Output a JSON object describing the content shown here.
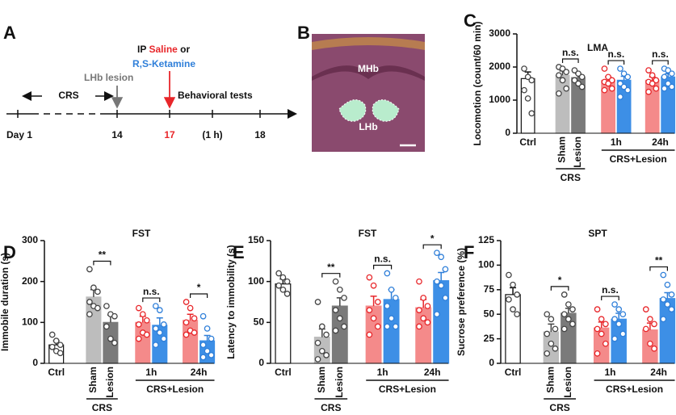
{
  "timeline": {
    "panel": "A",
    "ip": "IP",
    "saline": "Saline",
    "or": "or",
    "ketamine": "R,S-Ketamine",
    "lesion": "LHb lesion",
    "crs": "CRS",
    "tests": "Behavioral tests",
    "days": [
      "Day 1",
      "14",
      "17",
      "(1 h)",
      "18"
    ]
  },
  "image": {
    "panel": "B",
    "labels": [
      "MHb",
      "LHb"
    ]
  },
  "chart_data": [
    {
      "type": "bar",
      "panel": "C",
      "title": "LMA",
      "ylabel": "Locomotion (count/60 min)",
      "categories": [
        "Ctrl",
        "Sham",
        "Lesion",
        null,
        null,
        null,
        null
      ],
      "group_labels": [
        "1h",
        "24h"
      ],
      "condition_labels": [
        "CRS",
        "CRS+Lesion"
      ],
      "values": [
        1650,
        1750,
        1680,
        1600,
        1600,
        1600,
        1700
      ],
      "errors": [
        200,
        130,
        120,
        100,
        120,
        100,
        100
      ],
      "points": [
        [
          1950,
          1700,
          1600,
          1300,
          1050,
          600
        ],
        [
          2000,
          1950,
          1850,
          1750,
          1600,
          1350,
          1200
        ],
        [
          1900,
          1800,
          1700,
          1600,
          1500,
          1400
        ],
        [
          1950,
          1700,
          1600,
          1550,
          1500,
          1350,
          1300
        ],
        [
          1950,
          1800,
          1700,
          1500,
          1400,
          1300,
          1100
        ],
        [
          1900,
          1750,
          1600,
          1550,
          1500,
          1350,
          1250
        ],
        [
          1950,
          1900,
          1800,
          1700,
          1500,
          1400,
          1350
        ]
      ],
      "significance": [
        "n.s.",
        "n.s.",
        "n.s."
      ],
      "colors": [
        "#ffffff",
        "#bdbdbd",
        "#7a7a7a",
        "#f48a8a",
        "#3d8fe6",
        "#f48a8a",
        "#3d8fe6"
      ],
      "point_colors": [
        "#444444",
        "#444444",
        "#444444",
        "#e8262a",
        "#2f7fd9",
        "#e8262a",
        "#2f7fd9"
      ],
      "ylim": [
        0,
        3000
      ],
      "yticks": [
        0,
        1000,
        2000,
        3000
      ]
    },
    {
      "type": "bar",
      "panel": "D",
      "title": "FST",
      "ylabel": "Immobile duration (s)",
      "categories": [
        "Ctrl",
        "Sham",
        "Lesion",
        null,
        null,
        null,
        null
      ],
      "group_labels": [
        "1h",
        "24h"
      ],
      "condition_labels": [
        "CRS",
        "CRS+Lesion"
      ],
      "values": [
        45,
        162,
        100,
        100,
        93,
        105,
        55
      ],
      "errors": [
        10,
        18,
        18,
        15,
        18,
        15,
        13
      ],
      "points": [
        [
          70,
          55,
          45,
          40,
          30,
          25
        ],
        [
          230,
          185,
          175,
          150,
          140,
          135,
          120
        ],
        [
          140,
          120,
          115,
          90,
          60,
          50
        ],
        [
          135,
          120,
          105,
          95,
          75,
          70,
          60
        ],
        [
          140,
          130,
          95,
          85,
          75,
          60,
          45
        ],
        [
          150,
          135,
          110,
          100,
          80,
          75,
          70
        ],
        [
          115,
          85,
          60,
          45,
          30,
          20,
          15
        ]
      ],
      "significance": [
        "**",
        "n.s.",
        "*"
      ],
      "colors": [
        "#ffffff",
        "#bdbdbd",
        "#7a7a7a",
        "#f48a8a",
        "#3d8fe6",
        "#f48a8a",
        "#3d8fe6"
      ],
      "point_colors": [
        "#444444",
        "#444444",
        "#444444",
        "#e8262a",
        "#2f7fd9",
        "#e8262a",
        "#2f7fd9"
      ],
      "ylim": [
        0,
        300
      ],
      "yticks": [
        0,
        100,
        200,
        300
      ]
    },
    {
      "type": "bar",
      "panel": "E",
      "title": "FST",
      "ylabel": "Latency to immobility (s)",
      "categories": [
        "Ctrl",
        "Sham",
        "Lesion",
        null,
        null,
        null,
        null
      ],
      "group_labels": [
        "1h",
        "24h"
      ],
      "condition_labels": [
        "CRS",
        "CRS+Lesion"
      ],
      "values": [
        97,
        32,
        70,
        70,
        78,
        68,
        101
      ],
      "errors": [
        6,
        10,
        10,
        12,
        12,
        10,
        10
      ],
      "points": [
        [
          110,
          105,
          100,
          95,
          90,
          85
        ],
        [
          75,
          45,
          35,
          25,
          15,
          10,
          5
        ],
        [
          100,
          90,
          80,
          65,
          55,
          45,
          40
        ],
        [
          105,
          95,
          75,
          65,
          55,
          45,
          35
        ],
        [
          110,
          90,
          80,
          70,
          55,
          45,
          45
        ],
        [
          100,
          80,
          70,
          65,
          55,
          50,
          45
        ],
        [
          135,
          130,
          115,
          100,
          95,
          80,
          60
        ]
      ],
      "significance": [
        "**",
        "n.s.",
        "*"
      ],
      "colors": [
        "#ffffff",
        "#bdbdbd",
        "#7a7a7a",
        "#f48a8a",
        "#3d8fe6",
        "#f48a8a",
        "#3d8fe6"
      ],
      "point_colors": [
        "#444444",
        "#444444",
        "#444444",
        "#e8262a",
        "#2f7fd9",
        "#e8262a",
        "#2f7fd9"
      ],
      "ylim": [
        0,
        150
      ],
      "yticks": [
        0,
        50,
        100,
        150
      ]
    },
    {
      "type": "bar",
      "panel": "F",
      "title": "SPT",
      "ylabel": "Sucrose preference (%)",
      "categories": [
        "Ctrl",
        "Sham",
        "Lesion",
        null,
        null,
        null,
        null
      ],
      "group_labels": [
        "1h",
        "24h"
      ],
      "condition_labels": [
        "CRS",
        "CRS+Lesion"
      ],
      "values": [
        70,
        32,
        51,
        36,
        45,
        34,
        66
      ],
      "errors": [
        7,
        8,
        5,
        6,
        6,
        7,
        6
      ],
      "points": [
        [
          90,
          80,
          70,
          65,
          55,
          50
        ],
        [
          50,
          45,
          35,
          30,
          20,
          15,
          10
        ],
        [
          70,
          60,
          55,
          50,
          45,
          40,
          35
        ],
        [
          55,
          45,
          40,
          35,
          30,
          20,
          10
        ],
        [
          60,
          55,
          50,
          45,
          40,
          30,
          25
        ],
        [
          55,
          45,
          40,
          35,
          20,
          15
        ],
        [
          90,
          80,
          70,
          65,
          60,
          55,
          45
        ]
      ],
      "significance": [
        "*",
        "n.s.",
        "**"
      ],
      "colors": [
        "#ffffff",
        "#bdbdbd",
        "#7a7a7a",
        "#f48a8a",
        "#3d8fe6",
        "#f48a8a",
        "#3d8fe6"
      ],
      "point_colors": [
        "#444444",
        "#444444",
        "#444444",
        "#e8262a",
        "#2f7fd9",
        "#e8262a",
        "#2f7fd9"
      ],
      "ylim": [
        0,
        125
      ],
      "yticks": [
        0,
        25,
        50,
        75,
        100,
        125
      ]
    }
  ]
}
